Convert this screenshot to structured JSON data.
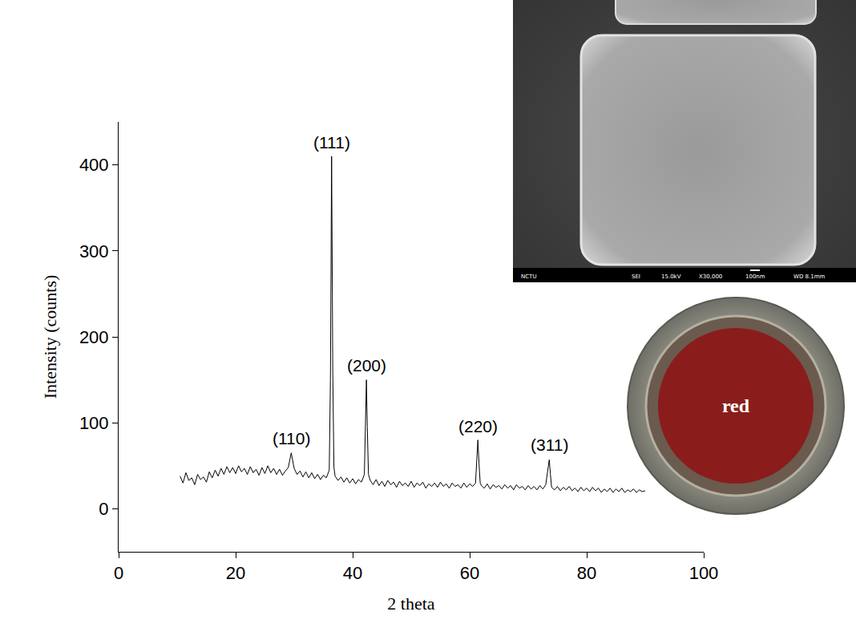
{
  "chart_data": {
    "type": "line",
    "color": "#000000",
    "x_label": "2 theta",
    "y_label": "Intensity (counts)",
    "xlim": [
      0,
      100
    ],
    "xticks": [
      0,
      20,
      40,
      60,
      80,
      100
    ],
    "ylim": [
      -50,
      450
    ],
    "yticks": [
      0,
      100,
      200,
      300,
      400
    ],
    "grid": false,
    "x": [
      10.5,
      11,
      11.5,
      12,
      12.5,
      13,
      13.5,
      14,
      14.5,
      15,
      15.5,
      16,
      16.5,
      17,
      17.5,
      18,
      18.5,
      19,
      19.5,
      20,
      20.5,
      21,
      21.5,
      22,
      22.5,
      23,
      23.5,
      24,
      24.5,
      25,
      25.5,
      26,
      26.5,
      27,
      27.5,
      28,
      28.5,
      29,
      29.5,
      30,
      30.5,
      31,
      31.5,
      32,
      32.5,
      33,
      33.5,
      34,
      34.5,
      35,
      35.5,
      36,
      36.2,
      36.4,
      36.6,
      36.8,
      37,
      37.5,
      38,
      38.5,
      39,
      39.5,
      40,
      40.5,
      41,
      41.5,
      42,
      42.2,
      42.35,
      42.5,
      42.7,
      43,
      43.5,
      44,
      44.5,
      45,
      45.5,
      46,
      46.5,
      47,
      47.5,
      48,
      48.5,
      49,
      49.5,
      50,
      50.5,
      51,
      51.5,
      52,
      52.5,
      53,
      53.5,
      54,
      54.5,
      55,
      55.5,
      56,
      56.5,
      57,
      57.5,
      58,
      58.5,
      59,
      59.5,
      60,
      60.5,
      61,
      61.2,
      61.4,
      61.6,
      61.8,
      62,
      62.5,
      63,
      63.5,
      64,
      64.5,
      65,
      65.5,
      66,
      66.5,
      67,
      67.5,
      68,
      68.5,
      69,
      69.5,
      70,
      70.5,
      71,
      71.5,
      72,
      72.5,
      73,
      73.4,
      73.6,
      73.8,
      74,
      74.5,
      75,
      75.5,
      76,
      76.5,
      77,
      77.5,
      78,
      78.5,
      79,
      79.5,
      80,
      80.5,
      81,
      81.5,
      82,
      82.5,
      83,
      83.5,
      84,
      84.5,
      85,
      85.5,
      86,
      86.5,
      87,
      87.5,
      88,
      88.5,
      89,
      89.5,
      90
    ],
    "values": [
      38,
      30,
      42,
      33,
      36,
      28,
      40,
      34,
      37,
      31,
      43,
      36,
      45,
      38,
      47,
      40,
      49,
      42,
      48,
      41,
      50,
      43,
      47,
      40,
      49,
      42,
      46,
      39,
      48,
      41,
      50,
      42,
      47,
      40,
      46,
      39,
      44,
      48,
      65,
      47,
      40,
      44,
      37,
      43,
      36,
      42,
      35,
      40,
      34,
      39,
      36,
      45,
      150,
      410,
      160,
      48,
      38,
      33,
      37,
      31,
      36,
      30,
      35,
      29,
      34,
      31,
      40,
      100,
      150,
      95,
      40,
      33,
      28,
      34,
      27,
      32,
      26,
      33,
      28,
      31,
      25,
      32,
      27,
      30,
      26,
      32,
      25,
      30,
      27,
      31,
      24,
      29,
      26,
      30,
      25,
      31,
      26,
      29,
      24,
      30,
      26,
      28,
      24,
      30,
      25,
      29,
      26,
      30,
      55,
      80,
      52,
      30,
      27,
      24,
      29,
      23,
      28,
      25,
      27,
      23,
      28,
      24,
      27,
      22,
      28,
      24,
      26,
      22,
      27,
      23,
      26,
      22,
      27,
      23,
      28,
      45,
      57,
      40,
      25,
      22,
      26,
      21,
      25,
      22,
      26,
      21,
      24,
      20,
      25,
      21,
      24,
      20,
      25,
      21,
      24,
      19,
      23,
      20,
      24,
      19,
      23,
      20,
      24,
      19,
      22,
      20,
      23,
      19,
      22,
      20,
      21
    ],
    "annotations": [
      {
        "text": "(110)",
        "x": 29.5,
        "y": 68
      },
      {
        "text": "(111)",
        "x": 36.4,
        "y": 412
      },
      {
        "text": "(200)",
        "x": 42.35,
        "y": 152
      },
      {
        "text": "(220)",
        "x": 61.4,
        "y": 82
      },
      {
        "text": "(311)",
        "x": 73.6,
        "y": 60
      }
    ]
  },
  "insets": {
    "sem_image": {
      "footer": [
        "NCTU",
        "SEI",
        "15.0kV",
        "X30,000",
        "100nm",
        "WD 8.1mm"
      ]
    },
    "photo": {
      "label": "red"
    }
  }
}
